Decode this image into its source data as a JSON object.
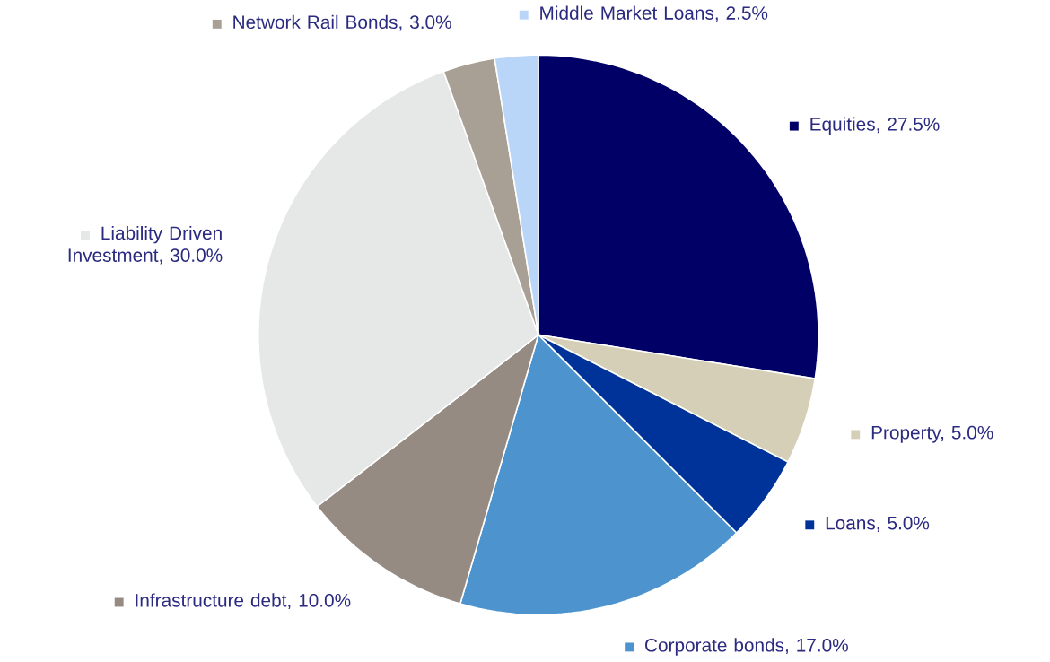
{
  "chart_data": {
    "type": "pie",
    "categories": [
      "Equities, 27.5%",
      "Property, 5.0%",
      "Loans, 5.0%",
      "Corporate bonds, 17.0%",
      "Infrastructure debt, 10.0%",
      "Liability Driven Investment, 30.0%",
      "Network Rail Bonds, 3.0%",
      "Middle Market Loans, 2.5%"
    ],
    "values": [
      27.5,
      5.0,
      5.0,
      17.0,
      10.0,
      30.0,
      3.0,
      2.5
    ],
    "legend": "right",
    "colors": [
      "#000066",
      "#d6cfb7",
      "#003399",
      "#4d94cf",
      "#958b82",
      "#e5e8e6",
      "#a9a095",
      "#b9d5f7"
    ]
  }
}
